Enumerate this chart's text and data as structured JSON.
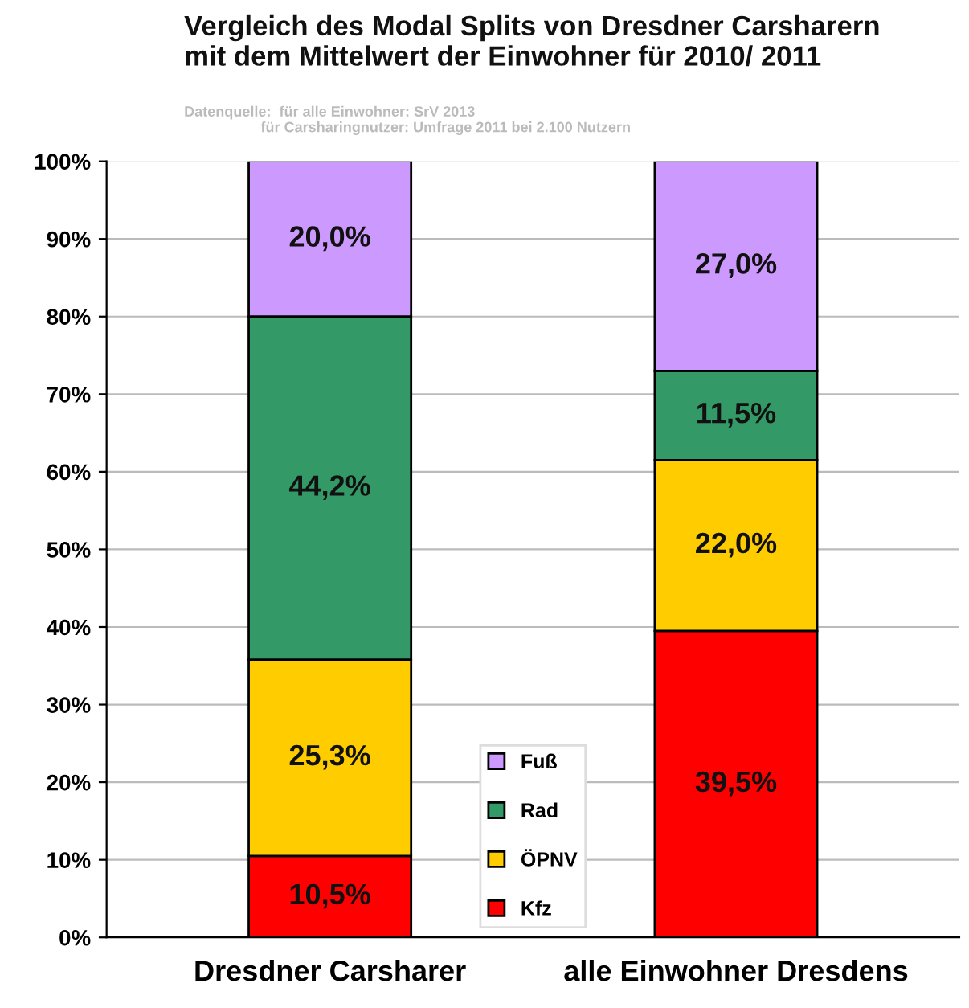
{
  "chart_data": {
    "type": "bar",
    "stacked": true,
    "title": "Vergleich des Modal Splits von Dresdner Carsharern\nmit dem Mittelwert der Einwohner für 2010/ 2011",
    "subtitle": "Datenquelle:  für alle Einwohner: SrV 2013\n                   für Carsharingnutzer: Umfrage 2011 bei 2.100 Nutzern",
    "categories": [
      "Dresdner Carsharer",
      "alle Einwohner Dresdens"
    ],
    "series": [
      {
        "name": "Kfz",
        "color": "#ff0000",
        "values": [
          10.5,
          39.5
        ],
        "value_labels": [
          "10,5%",
          "39,5%"
        ]
      },
      {
        "name": "ÖPNV",
        "color": "#ffcc00",
        "values": [
          25.3,
          22.0
        ],
        "value_labels": [
          "25,3%",
          "22,0%"
        ]
      },
      {
        "name": "Rad",
        "color": "#339966",
        "values": [
          44.2,
          11.5
        ],
        "value_labels": [
          "44,2%",
          "11,5%"
        ]
      },
      {
        "name": "Fuß",
        "color": "#cc99ff",
        "values": [
          20.0,
          27.0
        ],
        "value_labels": [
          "20,0%",
          "27,0%"
        ]
      }
    ],
    "ylim": [
      0,
      100
    ],
    "yticks": [
      {
        "value": 0,
        "label": "0%"
      },
      {
        "value": 10,
        "label": "10%"
      },
      {
        "value": 20,
        "label": "20%"
      },
      {
        "value": 30,
        "label": "30%"
      },
      {
        "value": 40,
        "label": "40%"
      },
      {
        "value": 50,
        "label": "50%"
      },
      {
        "value": 60,
        "label": "60%"
      },
      {
        "value": 70,
        "label": "70%"
      },
      {
        "value": 80,
        "label": "80%"
      },
      {
        "value": 90,
        "label": "90%"
      },
      {
        "value": 100,
        "label": "100%"
      }
    ],
    "grid": "y",
    "legend": "bottom"
  }
}
